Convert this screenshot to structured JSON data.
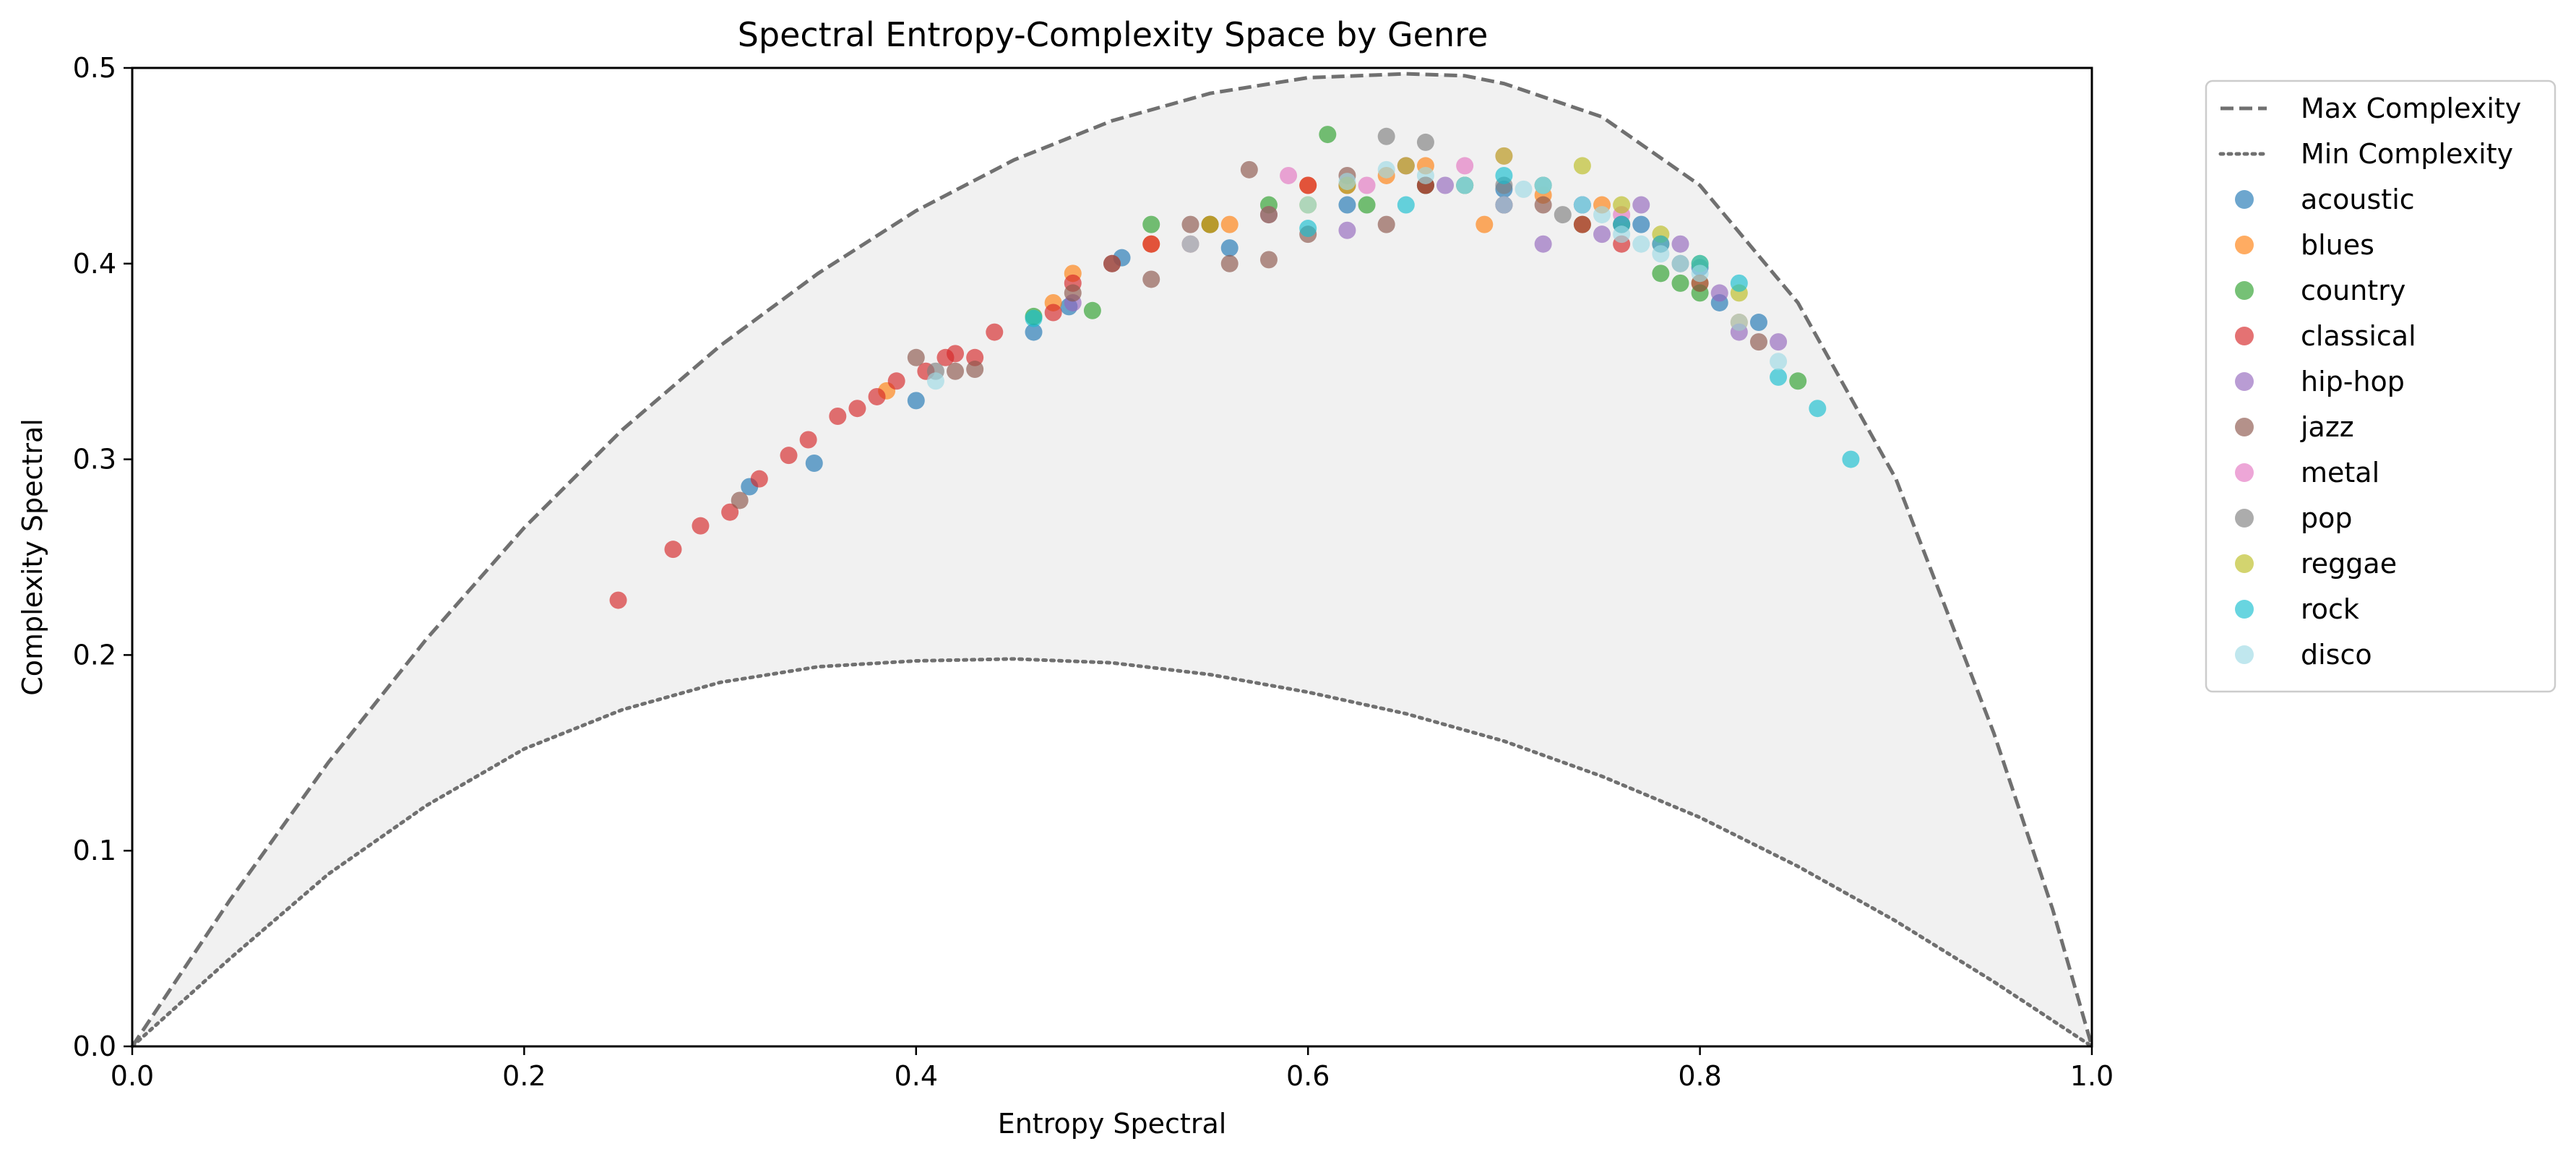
{
  "chart_data": {
    "type": "scatter",
    "title": "Spectral Entropy-Complexity Space by Genre",
    "xlabel": "Entropy Spectral",
    "ylabel": "Complexity Spectral",
    "xlim": [
      0,
      1
    ],
    "ylim": [
      0,
      0.5
    ],
    "xticks": [
      "0.0",
      "0.2",
      "0.4",
      "0.6",
      "0.8",
      "1.0"
    ],
    "yticks": [
      "0.0",
      "0.1",
      "0.2",
      "0.3",
      "0.4",
      "0.5"
    ],
    "grid": false,
    "legend_position": "outside-right",
    "curves": [
      {
        "name": "Max Complexity",
        "style": "dashed",
        "color": "#707070",
        "points": [
          [
            0,
            0
          ],
          [
            0.05,
            0.075
          ],
          [
            0.1,
            0.145
          ],
          [
            0.15,
            0.208
          ],
          [
            0.2,
            0.265
          ],
          [
            0.25,
            0.315
          ],
          [
            0.3,
            0.358
          ],
          [
            0.35,
            0.395
          ],
          [
            0.4,
            0.427
          ],
          [
            0.45,
            0.453
          ],
          [
            0.5,
            0.473
          ],
          [
            0.55,
            0.487
          ],
          [
            0.6,
            0.495
          ],
          [
            0.65,
            0.497
          ],
          [
            0.68,
            0.496
          ],
          [
            0.7,
            0.492
          ],
          [
            0.75,
            0.475
          ],
          [
            0.8,
            0.44
          ],
          [
            0.85,
            0.38
          ],
          [
            0.9,
            0.29
          ],
          [
            0.95,
            0.16
          ],
          [
            0.98,
            0.07
          ],
          [
            1.0,
            0
          ]
        ]
      },
      {
        "name": "Min Complexity",
        "style": "dotted",
        "color": "#707070",
        "points": [
          [
            0,
            0
          ],
          [
            0.05,
            0.045
          ],
          [
            0.1,
            0.088
          ],
          [
            0.15,
            0.123
          ],
          [
            0.2,
            0.152
          ],
          [
            0.25,
            0.172
          ],
          [
            0.3,
            0.186
          ],
          [
            0.35,
            0.194
          ],
          [
            0.4,
            0.197
          ],
          [
            0.45,
            0.198
          ],
          [
            0.5,
            0.196
          ],
          [
            0.55,
            0.19
          ],
          [
            0.6,
            0.181
          ],
          [
            0.65,
            0.17
          ],
          [
            0.7,
            0.156
          ],
          [
            0.75,
            0.138
          ],
          [
            0.8,
            0.117
          ],
          [
            0.85,
            0.092
          ],
          [
            0.9,
            0.064
          ],
          [
            0.95,
            0.033
          ],
          [
            1.0,
            0
          ]
        ]
      }
    ],
    "series": [
      {
        "name": "acoustic",
        "color": "#1f77b4",
        "x": [
          0.315,
          0.348,
          0.4,
          0.46,
          0.478,
          0.505,
          0.56,
          0.62,
          0.66,
          0.7,
          0.74,
          0.77,
          0.8,
          0.81,
          0.83
        ],
        "y": [
          0.286,
          0.298,
          0.33,
          0.365,
          0.378,
          0.403,
          0.408,
          0.43,
          0.44,
          0.438,
          0.43,
          0.42,
          0.398,
          0.38,
          0.37
        ]
      },
      {
        "name": "blues",
        "color": "#ff7f0e",
        "x": [
          0.385,
          0.47,
          0.48,
          0.52,
          0.56,
          0.6,
          0.64,
          0.66,
          0.69,
          0.72,
          0.75,
          0.78,
          0.8,
          0.82
        ],
        "y": [
          0.335,
          0.38,
          0.395,
          0.41,
          0.42,
          0.44,
          0.445,
          0.45,
          0.42,
          0.435,
          0.43,
          0.41,
          0.39,
          0.37
        ]
      },
      {
        "name": "country",
        "color": "#2ca02c",
        "x": [
          0.46,
          0.49,
          0.52,
          0.55,
          0.58,
          0.61,
          0.63,
          0.66,
          0.7,
          0.74,
          0.78,
          0.79,
          0.8,
          0.85
        ],
        "y": [
          0.373,
          0.376,
          0.42,
          0.42,
          0.43,
          0.466,
          0.43,
          0.44,
          0.43,
          0.42,
          0.395,
          0.39,
          0.385,
          0.34
        ]
      },
      {
        "name": "classical",
        "color": "#d62728",
        "x": [
          0.248,
          0.276,
          0.29,
          0.305,
          0.32,
          0.335,
          0.345,
          0.36,
          0.37,
          0.38,
          0.39,
          0.405,
          0.415,
          0.42,
          0.43,
          0.44,
          0.47,
          0.48,
          0.5,
          0.52,
          0.54,
          0.55,
          0.58,
          0.6,
          0.62,
          0.66,
          0.7,
          0.74,
          0.76
        ],
        "y": [
          0.228,
          0.254,
          0.266,
          0.273,
          0.29,
          0.302,
          0.31,
          0.322,
          0.326,
          0.332,
          0.34,
          0.345,
          0.352,
          0.354,
          0.352,
          0.365,
          0.375,
          0.39,
          0.4,
          0.41,
          0.41,
          0.42,
          0.425,
          0.44,
          0.44,
          0.44,
          0.43,
          0.42,
          0.41
        ]
      },
      {
        "name": "hip-hop",
        "color": "#9467bd",
        "x": [
          0.48,
          0.62,
          0.67,
          0.7,
          0.72,
          0.75,
          0.77,
          0.79,
          0.81,
          0.82,
          0.84
        ],
        "y": [
          0.38,
          0.417,
          0.44,
          0.43,
          0.41,
          0.415,
          0.43,
          0.41,
          0.385,
          0.365,
          0.36
        ]
      },
      {
        "name": "jazz",
        "color": "#8c564b",
        "x": [
          0.31,
          0.4,
          0.42,
          0.43,
          0.48,
          0.5,
          0.52,
          0.54,
          0.56,
          0.57,
          0.58,
          0.6,
          0.62,
          0.64,
          0.65,
          0.68,
          0.72,
          0.76,
          0.8,
          0.83
        ],
        "y": [
          0.279,
          0.352,
          0.345,
          0.346,
          0.385,
          0.4,
          0.392,
          0.42,
          0.4,
          0.448,
          0.402,
          0.415,
          0.445,
          0.42,
          0.45,
          0.44,
          0.43,
          0.42,
          0.39,
          0.36
        ]
      },
      {
        "name": "metal",
        "color": "#e377c2",
        "x": [
          0.59,
          0.63,
          0.65,
          0.68,
          0.7,
          0.72,
          0.74,
          0.76,
          0.78
        ],
        "y": [
          0.445,
          0.44,
          0.45,
          0.45,
          0.455,
          0.44,
          0.43,
          0.425,
          0.41
        ]
      },
      {
        "name": "pop",
        "color": "#7f7f7f",
        "x": [
          0.41,
          0.58,
          0.64,
          0.66,
          0.7,
          0.73,
          0.76,
          0.79
        ],
        "y": [
          0.345,
          0.425,
          0.465,
          0.462,
          0.44,
          0.425,
          0.42,
          0.4
        ]
      },
      {
        "name": "reggae",
        "color": "#bcbd22",
        "x": [
          0.55,
          0.6,
          0.62,
          0.65,
          0.68,
          0.7,
          0.72,
          0.74,
          0.76,
          0.78,
          0.8,
          0.82
        ],
        "y": [
          0.42,
          0.43,
          0.44,
          0.45,
          0.44,
          0.455,
          0.44,
          0.45,
          0.43,
          0.415,
          0.4,
          0.385
        ]
      },
      {
        "name": "rock",
        "color": "#17becf",
        "x": [
          0.46,
          0.6,
          0.65,
          0.68,
          0.7,
          0.72,
          0.74,
          0.76,
          0.78,
          0.8,
          0.82,
          0.84,
          0.86,
          0.877
        ],
        "y": [
          0.372,
          0.418,
          0.43,
          0.44,
          0.445,
          0.44,
          0.43,
          0.42,
          0.41,
          0.4,
          0.39,
          0.342,
          0.326,
          0.3
        ]
      },
      {
        "name": "disco",
        "color": "#9edae5",
        "x": [
          0.41,
          0.54,
          0.6,
          0.62,
          0.64,
          0.66,
          0.68,
          0.7,
          0.71,
          0.72,
          0.74,
          0.75,
          0.76,
          0.77,
          0.78,
          0.79,
          0.8,
          0.82,
          0.84
        ],
        "y": [
          0.34,
          0.41,
          0.43,
          0.442,
          0.448,
          0.445,
          0.44,
          0.43,
          0.438,
          0.44,
          0.43,
          0.425,
          0.415,
          0.41,
          0.405,
          0.4,
          0.395,
          0.37,
          0.35
        ]
      }
    ]
  }
}
